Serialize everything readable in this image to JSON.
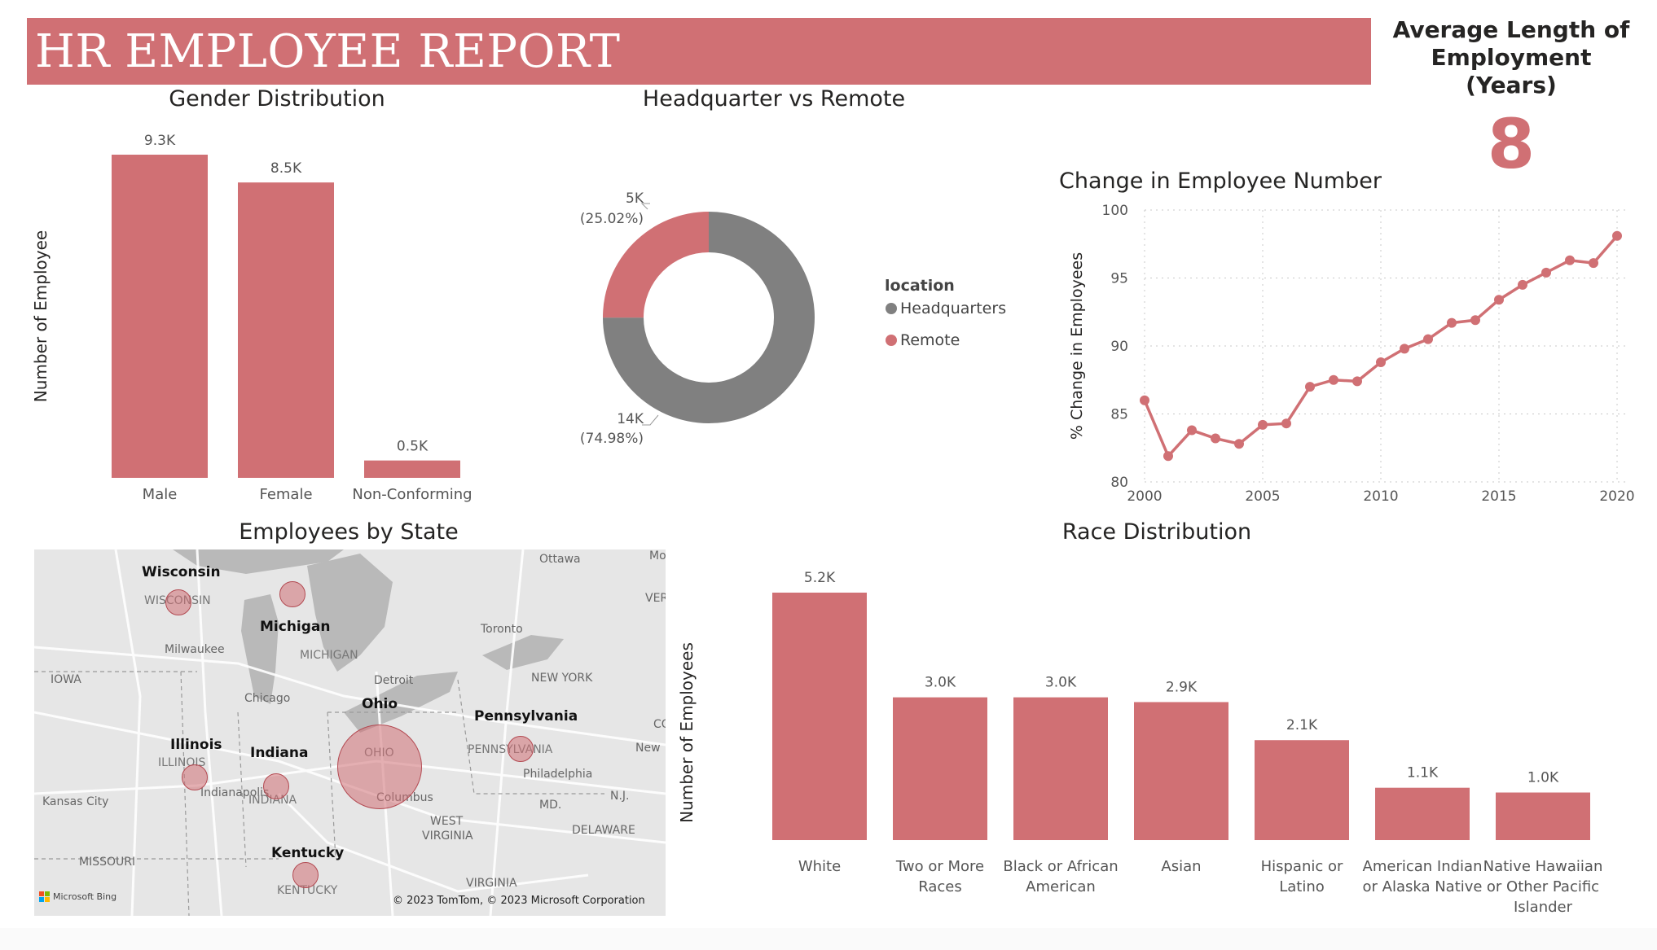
{
  "header": {
    "title": "HR EMPLOYEE REPORT"
  },
  "kpi": {
    "label_line1": "Average Length of",
    "label_line2": "Employment (Years)",
    "value": "8"
  },
  "colors": {
    "accent": "#d07074",
    "gray": "#808080",
    "grid": "#c8c8c8",
    "text": "#252423",
    "map_bg": "#e6e6e6",
    "map_water": "#b9b9b9"
  },
  "chart_data": [
    {
      "type": "bar",
      "title": "Gender Distribution",
      "ylabel": "Number of Employee",
      "xlabel": "",
      "categories": [
        "Male",
        "Female",
        "Non-Conforming"
      ],
      "values": [
        9300,
        8500,
        500
      ],
      "labels": [
        "9.3K",
        "8.5K",
        "0.5K"
      ],
      "ylim": [
        0,
        9300
      ]
    },
    {
      "type": "pie",
      "title": "Headquarter vs Remote",
      "legend_title": "location",
      "legend_position": "right",
      "slices": [
        {
          "name": "Headquarters",
          "value": 14000,
          "label": "14K",
          "pct": "(74.98%)",
          "percent": 74.98,
          "color": "#808080"
        },
        {
          "name": "Remote",
          "value": 5000,
          "label": "5K",
          "pct": "(25.02%)",
          "percent": 25.02,
          "color": "#d07074"
        }
      ]
    },
    {
      "type": "line",
      "title": "Change in Employee Number",
      "ylabel": "% Change in Employees",
      "xlabel": "",
      "x": [
        2000,
        2001,
        2002,
        2003,
        2004,
        2005,
        2006,
        2007,
        2008,
        2009,
        2010,
        2011,
        2012,
        2013,
        2014,
        2015,
        2016,
        2017,
        2018,
        2019,
        2020
      ],
      "y": [
        86.0,
        81.9,
        83.8,
        83.2,
        82.8,
        84.2,
        84.3,
        87.0,
        87.5,
        87.4,
        88.8,
        89.8,
        90.5,
        91.7,
        91.9,
        93.4,
        94.5,
        95.4,
        96.3,
        96.1,
        98.1
      ],
      "xticks": [
        2000,
        2005,
        2010,
        2015,
        2020
      ],
      "yticks": [
        80,
        85,
        90,
        95,
        100
      ],
      "xlim": [
        2000,
        2020
      ],
      "ylim": [
        80,
        100
      ],
      "grid": true
    },
    {
      "type": "bar",
      "title": "Race Distribution",
      "ylabel": "Number of Employees",
      "xlabel": "",
      "categories": [
        [
          "White"
        ],
        [
          "Two or More",
          "Races"
        ],
        [
          "Black or African",
          "American"
        ],
        [
          "Asian"
        ],
        [
          "Hispanic or",
          "Latino"
        ],
        [
          "American Indian",
          "or Alaska Native"
        ],
        [
          "Native Hawaiian",
          "or Other Pacific",
          "Islander"
        ]
      ],
      "values": [
        5200,
        3000,
        3000,
        2900,
        2100,
        1100,
        1000
      ],
      "labels": [
        "5.2K",
        "3.0K",
        "3.0K",
        "2.9K",
        "2.1K",
        "1.1K",
        "1.0K"
      ],
      "ylim": [
        0,
        5200
      ]
    }
  ],
  "map": {
    "title": "Employees by State",
    "attribution": "© 2023 TomTom, © 2023 Microsoft Corporation",
    "bing": "Microsoft Bing",
    "states": [
      {
        "name": "Wisconsin",
        "map_label": "WISCONSIN",
        "size": "small"
      },
      {
        "name": "Michigan",
        "map_label": "MICHIGAN",
        "size": "small"
      },
      {
        "name": "Ohio",
        "map_label": "OHIO",
        "size": "large"
      },
      {
        "name": "Pennsylvania",
        "map_label": "PENNSYLVANIA",
        "size": "small"
      },
      {
        "name": "Illinois",
        "map_label": "ILLINOIS",
        "size": "small"
      },
      {
        "name": "Indiana",
        "map_label": "INDIANA",
        "size": "small"
      },
      {
        "name": "Kentucky",
        "map_label": "KENTUCKY",
        "size": "small"
      }
    ],
    "places": [
      "Ottawa",
      "Mo",
      "VER",
      "Toronto",
      "Milwaukee",
      "IOWA",
      "Detroit",
      "NEW YORK",
      "CO",
      "Chicago",
      "New",
      "Philadelphia",
      "N.J.",
      "Indianapolis",
      "Columbus",
      "Kansas City",
      "MD.",
      "WEST",
      "VIRGINIA",
      "DELAWARE",
      "MISSOURI",
      "VIRGINIA"
    ]
  }
}
